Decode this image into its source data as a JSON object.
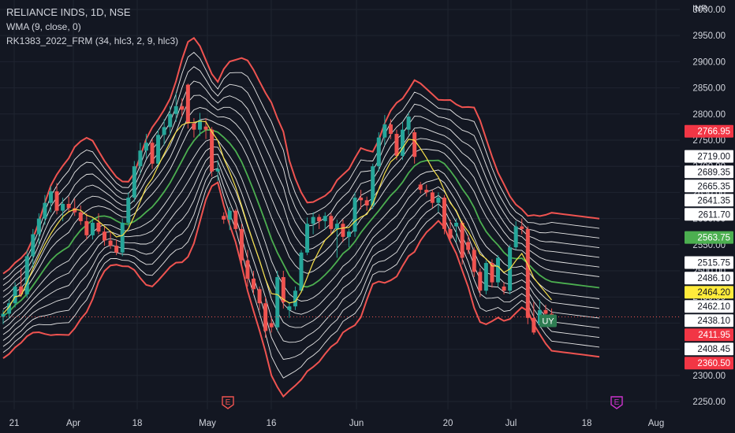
{
  "header": {
    "symbol_line": "RELIANCE INDS, 1D, NSE",
    "indicator1": "WMA (9, close, 0)",
    "indicator2": "RK1383_2022_FRM (34, hlc3, 2, 9, hlc3)",
    "currency": "INR"
  },
  "colors": {
    "background": "#131722",
    "up": "#26a69a",
    "down": "#ef5350",
    "band_outer": "#ef5350",
    "band_mid": "#4caf50",
    "band_inner": "#e8e8e8",
    "wma": "#f7e04b",
    "grid": "#1f2430",
    "text": "#d1d4dc"
  },
  "chart_data": {
    "type": "candlestick",
    "ylim": [
      2235,
      3018
    ],
    "y_ticks": [
      "2250.00",
      "2300.00",
      "2350.00",
      "2400.00",
      "2450.00",
      "2500.00",
      "2550.00",
      "2600.00",
      "2650.00",
      "2700.00",
      "2750.00",
      "2800.00",
      "2850.00",
      "2900.00",
      "2950.00",
      "3000.00"
    ],
    "x_ticks": [
      "21",
      "Apr",
      "18",
      "May",
      "16",
      "Jun",
      "20",
      "Jul",
      "18",
      "Aug"
    ],
    "price_labels": [
      {
        "text": "2766.95",
        "style": "red",
        "value": 2766.95
      },
      {
        "text": "2719.00",
        "style": "white",
        "value": 2719.0
      },
      {
        "text": "2689.35",
        "style": "white",
        "value": 2689.35
      },
      {
        "text": "2665.35",
        "style": "white",
        "value": 2665.35
      },
      {
        "text": "2641.35",
        "style": "white",
        "value": 2641.35
      },
      {
        "text": "2611.70",
        "style": "white",
        "value": 2611.7
      },
      {
        "text": "2563.75",
        "style": "green",
        "value": 2563.75
      },
      {
        "text": "2515.75",
        "style": "white",
        "value": 2515.75
      },
      {
        "text": "2486.10",
        "style": "white",
        "value": 2486.1
      },
      {
        "text": "2464.20",
        "style": "yellow",
        "value": 2464.2
      },
      {
        "text": "2462.10",
        "style": "white",
        "value": 2462.1
      },
      {
        "text": "2438.10",
        "style": "white",
        "value": 2438.1
      },
      {
        "text": "2411.95",
        "style": "red",
        "value": 2411.95
      },
      {
        "text": "2408.45",
        "style": "white",
        "value": 2408.45
      },
      {
        "text": "2360.50",
        "style": "red",
        "value": 2360.5
      }
    ],
    "last_price": 2411.95,
    "signal_label": "UY",
    "event_markers": [
      {
        "text": "E",
        "color": "#ef5350",
        "date": "May 2"
      },
      {
        "text": "E",
        "color": "#cc33cc",
        "date": "Jul 22"
      }
    ],
    "candles": [
      {
        "o": 2412,
        "h": 2425,
        "l": 2398,
        "c": 2418
      },
      {
        "o": 2418,
        "h": 2445,
        "l": 2408,
        "c": 2438
      },
      {
        "o": 2438,
        "h": 2478,
        "l": 2430,
        "c": 2470
      },
      {
        "o": 2470,
        "h": 2505,
        "l": 2450,
        "c": 2455
      },
      {
        "o": 2455,
        "h": 2540,
        "l": 2448,
        "c": 2528
      },
      {
        "o": 2528,
        "h": 2580,
        "l": 2505,
        "c": 2570
      },
      {
        "o": 2570,
        "h": 2610,
        "l": 2550,
        "c": 2600
      },
      {
        "o": 2600,
        "h": 2645,
        "l": 2588,
        "c": 2630
      },
      {
        "o": 2630,
        "h": 2662,
        "l": 2612,
        "c": 2652
      },
      {
        "o": 2652,
        "h": 2668,
        "l": 2608,
        "c": 2615
      },
      {
        "o": 2615,
        "h": 2640,
        "l": 2595,
        "c": 2628
      },
      {
        "o": 2628,
        "h": 2642,
        "l": 2612,
        "c": 2620
      },
      {
        "o": 2620,
        "h": 2638,
        "l": 2605,
        "c": 2612
      },
      {
        "o": 2612,
        "h": 2625,
        "l": 2588,
        "c": 2595
      },
      {
        "o": 2595,
        "h": 2610,
        "l": 2560,
        "c": 2568
      },
      {
        "o": 2568,
        "h": 2600,
        "l": 2560,
        "c": 2592
      },
      {
        "o": 2592,
        "h": 2610,
        "l": 2570,
        "c": 2575
      },
      {
        "o": 2575,
        "h": 2585,
        "l": 2548,
        "c": 2558
      },
      {
        "o": 2558,
        "h": 2575,
        "l": 2542,
        "c": 2548
      },
      {
        "o": 2548,
        "h": 2560,
        "l": 2530,
        "c": 2535
      },
      {
        "o": 2535,
        "h": 2600,
        "l": 2528,
        "c": 2592
      },
      {
        "o": 2592,
        "h": 2650,
        "l": 2585,
        "c": 2640
      },
      {
        "o": 2640,
        "h": 2710,
        "l": 2632,
        "c": 2700
      },
      {
        "o": 2700,
        "h": 2745,
        "l": 2685,
        "c": 2730
      },
      {
        "o": 2730,
        "h": 2762,
        "l": 2715,
        "c": 2745
      },
      {
        "o": 2745,
        "h": 2752,
        "l": 2695,
        "c": 2705
      },
      {
        "o": 2705,
        "h": 2770,
        "l": 2698,
        "c": 2760
      },
      {
        "o": 2760,
        "h": 2790,
        "l": 2740,
        "c": 2775
      },
      {
        "o": 2775,
        "h": 2815,
        "l": 2760,
        "c": 2800
      },
      {
        "o": 2800,
        "h": 2840,
        "l": 2785,
        "c": 2815
      },
      {
        "o": 2815,
        "h": 2830,
        "l": 2795,
        "c": 2808
      },
      {
        "o": 2856,
        "h": 2858,
        "l": 2772,
        "c": 2782
      },
      {
        "o": 2782,
        "h": 2792,
        "l": 2755,
        "c": 2770
      },
      {
        "o": 2770,
        "h": 2802,
        "l": 2758,
        "c": 2788
      },
      {
        "o": 2776,
        "h": 2792,
        "l": 2752,
        "c": 2770
      },
      {
        "o": 2770,
        "h": 2775,
        "l": 2680,
        "c": 2690
      },
      {
        "o": 2690,
        "h": 2712,
        "l": 2672,
        "c": 2695
      },
      {
        "o": 2605,
        "h": 2612,
        "l": 2590,
        "c": 2598
      },
      {
        "o": 2598,
        "h": 2622,
        "l": 2578,
        "c": 2615
      },
      {
        "o": 2615,
        "h": 2618,
        "l": 2575,
        "c": 2580
      },
      {
        "o": 2580,
        "h": 2590,
        "l": 2510,
        "c": 2520
      },
      {
        "o": 2520,
        "h": 2540,
        "l": 2470,
        "c": 2485
      },
      {
        "o": 2485,
        "h": 2500,
        "l": 2455,
        "c": 2465
      },
      {
        "o": 2465,
        "h": 2470,
        "l": 2425,
        "c": 2438
      },
      {
        "o": 2438,
        "h": 2450,
        "l": 2372,
        "c": 2385
      },
      {
        "o": 2400,
        "h": 2410,
        "l": 2382,
        "c": 2392
      },
      {
        "o": 2392,
        "h": 2500,
        "l": 2385,
        "c": 2488
      },
      {
        "o": 2488,
        "h": 2500,
        "l": 2428,
        "c": 2440
      },
      {
        "o": 2425,
        "h": 2440,
        "l": 2410,
        "c": 2432
      },
      {
        "o": 2432,
        "h": 2470,
        "l": 2425,
        "c": 2462
      },
      {
        "o": 2462,
        "h": 2540,
        "l": 2458,
        "c": 2535
      },
      {
        "o": 2535,
        "h": 2602,
        "l": 2530,
        "c": 2590
      },
      {
        "o": 2590,
        "h": 2612,
        "l": 2570,
        "c": 2603
      },
      {
        "o": 2603,
        "h": 2608,
        "l": 2580,
        "c": 2595
      },
      {
        "o": 2595,
        "h": 2612,
        "l": 2580,
        "c": 2605
      },
      {
        "o": 2605,
        "h": 2610,
        "l": 2570,
        "c": 2580
      },
      {
        "o": 2580,
        "h": 2598,
        "l": 2525,
        "c": 2590
      },
      {
        "o": 2590,
        "h": 2598,
        "l": 2555,
        "c": 2565
      },
      {
        "o": 2565,
        "h": 2580,
        "l": 2545,
        "c": 2575
      },
      {
        "o": 2575,
        "h": 2650,
        "l": 2565,
        "c": 2640
      },
      {
        "o": 2640,
        "h": 2655,
        "l": 2618,
        "c": 2635
      },
      {
        "o": 2635,
        "h": 2642,
        "l": 2615,
        "c": 2625
      },
      {
        "o": 2625,
        "h": 2705,
        "l": 2618,
        "c": 2700
      },
      {
        "o": 2700,
        "h": 2765,
        "l": 2690,
        "c": 2755
      },
      {
        "o": 2755,
        "h": 2798,
        "l": 2740,
        "c": 2780
      },
      {
        "o": 2780,
        "h": 2790,
        "l": 2752,
        "c": 2762
      },
      {
        "o": 2762,
        "h": 2770,
        "l": 2712,
        "c": 2720
      },
      {
        "o": 2720,
        "h": 2785,
        "l": 2712,
        "c": 2770
      },
      {
        "o": 2770,
        "h": 2802,
        "l": 2760,
        "c": 2795
      },
      {
        "o": 2765,
        "h": 2770,
        "l": 2705,
        "c": 2718
      },
      {
        "o": 2665,
        "h": 2670,
        "l": 2648,
        "c": 2655
      },
      {
        "o": 2655,
        "h": 2665,
        "l": 2642,
        "c": 2650
      },
      {
        "o": 2650,
        "h": 2655,
        "l": 2620,
        "c": 2630
      },
      {
        "o": 2630,
        "h": 2650,
        "l": 2612,
        "c": 2640
      },
      {
        "o": 2640,
        "h": 2645,
        "l": 2570,
        "c": 2580
      },
      {
        "o": 2580,
        "h": 2598,
        "l": 2558,
        "c": 2562
      },
      {
        "o": 2585,
        "h": 2600,
        "l": 2555,
        "c": 2592
      },
      {
        "o": 2592,
        "h": 2596,
        "l": 2512,
        "c": 2525
      },
      {
        "o": 2555,
        "h": 2568,
        "l": 2532,
        "c": 2540
      },
      {
        "o": 2540,
        "h": 2545,
        "l": 2488,
        "c": 2498
      },
      {
        "o": 2498,
        "h": 2505,
        "l": 2450,
        "c": 2462
      },
      {
        "o": 2462,
        "h": 2520,
        "l": 2455,
        "c": 2515
      },
      {
        "o": 2515,
        "h": 2522,
        "l": 2468,
        "c": 2478
      },
      {
        "o": 2478,
        "h": 2530,
        "l": 2470,
        "c": 2525
      },
      {
        "o": 2470,
        "h": 2478,
        "l": 2455,
        "c": 2462
      },
      {
        "o": 2462,
        "h": 2550,
        "l": 2455,
        "c": 2545
      },
      {
        "o": 2545,
        "h": 2595,
        "l": 2540,
        "c": 2585
      },
      {
        "o": 2585,
        "h": 2600,
        "l": 2570,
        "c": 2580
      },
      {
        "o": 2580,
        "h": 2585,
        "l": 2398,
        "c": 2410
      },
      {
        "o": 2410,
        "h": 2440,
        "l": 2378,
        "c": 2382
      },
      {
        "o": 2398,
        "h": 2445,
        "l": 2392,
        "c": 2425
      },
      {
        "o": 2425,
        "h": 2435,
        "l": 2398,
        "c": 2418
      },
      {
        "o": 2418,
        "h": 2428,
        "l": 2405,
        "c": 2412
      }
    ]
  }
}
